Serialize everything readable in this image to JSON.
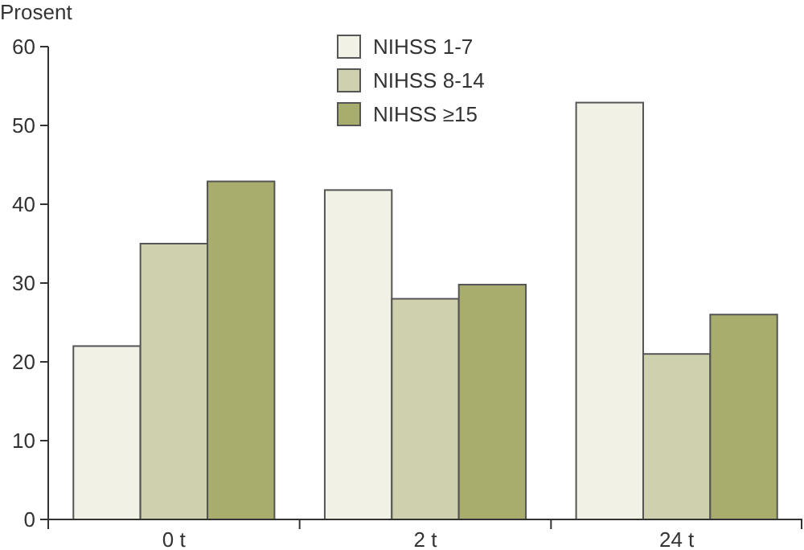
{
  "chart_data": {
    "type": "bar",
    "ylabel": "Prosent",
    "categories": [
      "0 t",
      "2 t",
      "24 t"
    ],
    "series": [
      {
        "name": "NIHSS 1-7",
        "color": "#f1f1e6",
        "values": [
          22,
          41.8,
          52.9
        ]
      },
      {
        "name": "NIHSS 8-14",
        "color": "#cfd1ae",
        "values": [
          35,
          28,
          21
        ]
      },
      {
        "name": "NIHSS ≥15",
        "color": "#a8ac6c",
        "values": [
          42.9,
          29.8,
          26
        ]
      }
    ],
    "ylim": [
      0,
      60
    ],
    "yticks": [
      0,
      10,
      20,
      30,
      40,
      50,
      60
    ],
    "grid": false,
    "legend": "top"
  }
}
